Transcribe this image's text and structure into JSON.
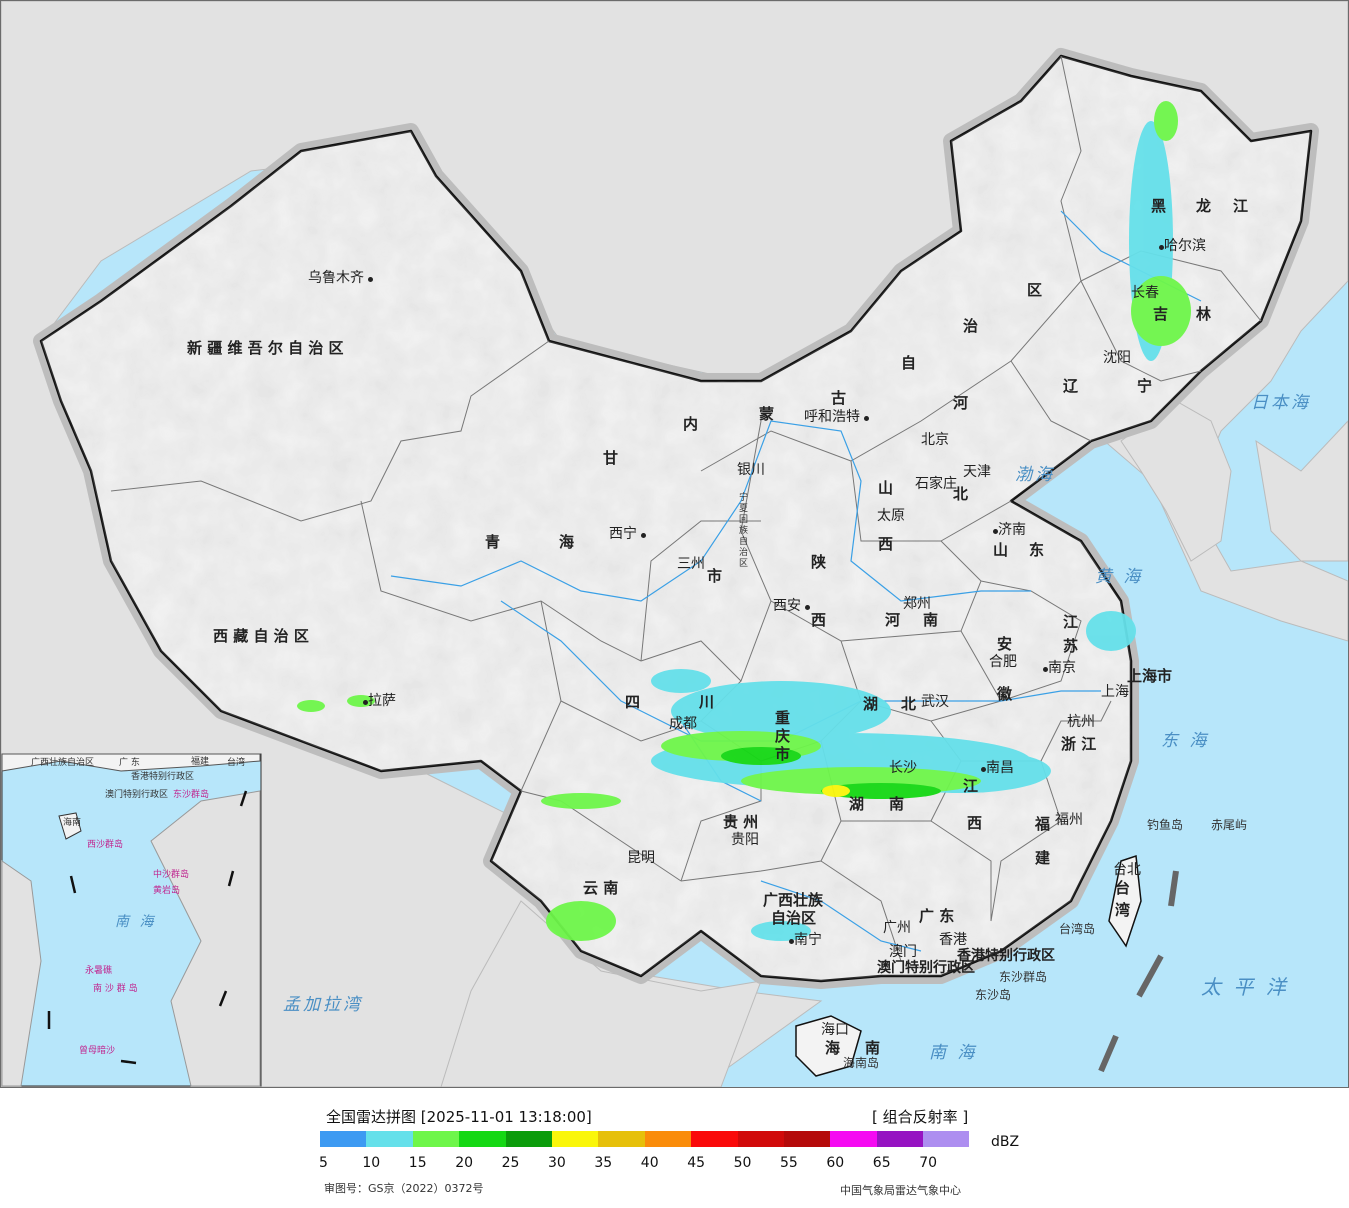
{
  "map": {
    "provinces": [
      {
        "id": "xinjiang",
        "label": "新 疆 维 吾 尔 自 治 区"
      },
      {
        "id": "xizang",
        "label": "西 藏 自 治 区"
      },
      {
        "id": "qinghai-1",
        "label": "青"
      },
      {
        "id": "qinghai-2",
        "label": "海"
      },
      {
        "id": "gansu",
        "label": "甘"
      },
      {
        "id": "neimenggu-1",
        "label": "内"
      },
      {
        "id": "neimenggu-2",
        "label": "蒙"
      },
      {
        "id": "neimenggu-3",
        "label": "古"
      },
      {
        "id": "neimenggu-4",
        "label": "自"
      },
      {
        "id": "neimenggu-5",
        "label": "治"
      },
      {
        "id": "neimenggu-6",
        "label": "区"
      },
      {
        "id": "heilongjiang-1",
        "label": "黑"
      },
      {
        "id": "heilongjiang-2",
        "label": "龙"
      },
      {
        "id": "heilongjiang-3",
        "label": "江"
      },
      {
        "id": "jilin-1",
        "label": "吉"
      },
      {
        "id": "jilin-2",
        "label": "林"
      },
      {
        "id": "liaoning-1",
        "label": "辽"
      },
      {
        "id": "liaoning-2",
        "label": "宁"
      },
      {
        "id": "hebei-1",
        "label": "河"
      },
      {
        "id": "hebei-2",
        "label": "北"
      },
      {
        "id": "shanxi-1",
        "label": "山"
      },
      {
        "id": "shanxi-2",
        "label": "西"
      },
      {
        "id": "shandong-1",
        "label": "山"
      },
      {
        "id": "shandong-2",
        "label": "东"
      },
      {
        "id": "henan-1",
        "label": "河"
      },
      {
        "id": "henan-2",
        "label": "南"
      },
      {
        "id": "shaanxi-1",
        "label": "陕"
      },
      {
        "id": "shaanxi-2",
        "label": "西"
      },
      {
        "id": "ningxia",
        "label": "宁夏回族自治区"
      },
      {
        "id": "sichuan-1",
        "label": "四"
      },
      {
        "id": "sichuan-2",
        "label": "川"
      },
      {
        "id": "chongqing",
        "label": "重庆市"
      },
      {
        "id": "hubei-1",
        "label": "湖"
      },
      {
        "id": "hubei-2",
        "label": "北"
      },
      {
        "id": "hunan-1",
        "label": "湖"
      },
      {
        "id": "hunan-2",
        "label": "南"
      },
      {
        "id": "anhui-1",
        "label": "安"
      },
      {
        "id": "anhui-2",
        "label": "徽"
      },
      {
        "id": "jiangsu-1",
        "label": "江"
      },
      {
        "id": "jiangsu-2",
        "label": "苏"
      },
      {
        "id": "shanghai",
        "label": "上海市"
      },
      {
        "id": "zhejiang",
        "label": "浙 江"
      },
      {
        "id": "jiangxi-1",
        "label": "江"
      },
      {
        "id": "jiangxi-2",
        "label": "西"
      },
      {
        "id": "fujian-1",
        "label": "福"
      },
      {
        "id": "fujian-2",
        "label": "建"
      },
      {
        "id": "guizhou",
        "label": "贵 州"
      },
      {
        "id": "yunnan",
        "label": "云 南"
      },
      {
        "id": "guangxi-1",
        "label": "广西壮族"
      },
      {
        "id": "guangxi-2",
        "label": "自治区"
      },
      {
        "id": "guangdong",
        "label": "广 东"
      },
      {
        "id": "hainan-1",
        "label": "海"
      },
      {
        "id": "hainan-2",
        "label": "南"
      },
      {
        "id": "taiwan-1",
        "label": "台"
      },
      {
        "id": "taiwan-2",
        "label": "湾"
      },
      {
        "id": "hongkong",
        "label": "香港特别行政区"
      },
      {
        "id": "macau",
        "label": "澳门特别行政区"
      },
      {
        "id": "shanxi-center",
        "label": "三州"
      },
      {
        "id": "gansu-shi",
        "label": "市"
      },
      {
        "id": "tianjin",
        "label": "天津"
      },
      {
        "id": "beijing",
        "label": "北京"
      }
    ],
    "cities": [
      {
        "id": "urumqi",
        "label": "乌鲁木齐"
      },
      {
        "id": "lhasa",
        "label": "拉萨"
      },
      {
        "id": "xining",
        "label": "西宁"
      },
      {
        "id": "yinchuan",
        "label": "银川"
      },
      {
        "id": "hohhot",
        "label": "呼和浩特"
      },
      {
        "id": "harbin",
        "label": "哈尔滨"
      },
      {
        "id": "changchun",
        "label": "长春"
      },
      {
        "id": "shenyang",
        "label": "沈阳"
      },
      {
        "id": "shijiazhuang",
        "label": "石家庄"
      },
      {
        "id": "taiyuan",
        "label": "太原"
      },
      {
        "id": "jinan",
        "label": "济南"
      },
      {
        "id": "zhengzhou",
        "label": "郑州"
      },
      {
        "id": "xian",
        "label": "西安"
      },
      {
        "id": "chengdu",
        "label": "成都"
      },
      {
        "id": "wuhan",
        "label": "武汉"
      },
      {
        "id": "hefei",
        "label": "合肥"
      },
      {
        "id": "nanjing",
        "label": "南京"
      },
      {
        "id": "shanghai-city",
        "label": "上海"
      },
      {
        "id": "hangzhou",
        "label": "杭州"
      },
      {
        "id": "nanchang",
        "label": "南昌"
      },
      {
        "id": "changsha",
        "label": "长沙"
      },
      {
        "id": "fuzhou",
        "label": "福州"
      },
      {
        "id": "guiyang",
        "label": "贵阳"
      },
      {
        "id": "kunming",
        "label": "昆明"
      },
      {
        "id": "nanning",
        "label": "南宁"
      },
      {
        "id": "guangzhou",
        "label": "广州"
      },
      {
        "id": "macau-city",
        "label": "澳门"
      },
      {
        "id": "hongkong-city",
        "label": "香港"
      },
      {
        "id": "haikou",
        "label": "海口"
      },
      {
        "id": "taibei",
        "label": "台北"
      },
      {
        "id": "lanzhou",
        "label": "三州"
      }
    ],
    "seas": [
      {
        "id": "bohai",
        "label": "渤海"
      },
      {
        "id": "huanghai",
        "label": "黄 海"
      },
      {
        "id": "donghai",
        "label": "东 海"
      },
      {
        "id": "nanhai",
        "label": "南 海"
      },
      {
        "id": "ribenhai",
        "label": "日本海"
      },
      {
        "id": "taipingyang",
        "label": "太 平 洋"
      },
      {
        "id": "mengjialawan",
        "label": "孟加拉湾"
      }
    ],
    "islands": [
      {
        "id": "diaoyudao",
        "label": "钓鱼岛"
      },
      {
        "id": "chiweiyu",
        "label": "赤尾屿"
      },
      {
        "id": "taiwandao",
        "label": "台湾岛"
      },
      {
        "id": "dongshaqundao",
        "label": "东沙群岛"
      },
      {
        "id": "dongshadao",
        "label": "东沙岛"
      },
      {
        "id": "hainandao",
        "label": "海南岛"
      }
    ],
    "inset": {
      "labels": [
        {
          "id": "inset-guangxi",
          "label": "广西壮族自治区"
        },
        {
          "id": "inset-guangdong",
          "label": "广 东"
        },
        {
          "id": "inset-fujian",
          "label": "福建"
        },
        {
          "id": "inset-taiwan",
          "label": "台湾"
        },
        {
          "id": "inset-hk",
          "label": "香港特别行政区"
        },
        {
          "id": "inset-macau",
          "label": "澳门特别行政区"
        },
        {
          "id": "inset-dongsha",
          "label": "东沙群岛"
        },
        {
          "id": "inset-hainan",
          "label": "海南"
        },
        {
          "id": "inset-xisha",
          "label": "西沙群岛"
        },
        {
          "id": "inset-zhongsha",
          "label": "中沙群岛"
        },
        {
          "id": "inset-huangyan",
          "label": "黄岩岛"
        },
        {
          "id": "inset-nanhai",
          "label": "南 海"
        },
        {
          "id": "inset-nansha",
          "label": "南 沙 群 岛"
        },
        {
          "id": "inset-yongshu",
          "label": "永暑礁"
        },
        {
          "id": "inset-zengmu",
          "label": "曾母暗沙"
        }
      ]
    }
  },
  "legend": {
    "title": "全国雷达拼图 [2025-11-01 13:18:00]",
    "product": "[ 组合反射率 ]",
    "unit": "dBZ",
    "colors": [
      "#3d9af2",
      "#65e0ea",
      "#6ef64a",
      "#15d814",
      "#0b9c0b",
      "#faf60a",
      "#e6c00a",
      "#fa8c0a",
      "#fa0a0a",
      "#d10a0a",
      "#b50a0a",
      "#f50af2",
      "#9613c2",
      "#ad8ef0"
    ],
    "ticks": [
      "5",
      "10",
      "15",
      "20",
      "25",
      "30",
      "35",
      "40",
      "45",
      "50",
      "55",
      "60",
      "65",
      "70"
    ],
    "review_number": "审图号：GS京（2022）0372号",
    "organization": "中国气象局雷达气象中心"
  }
}
